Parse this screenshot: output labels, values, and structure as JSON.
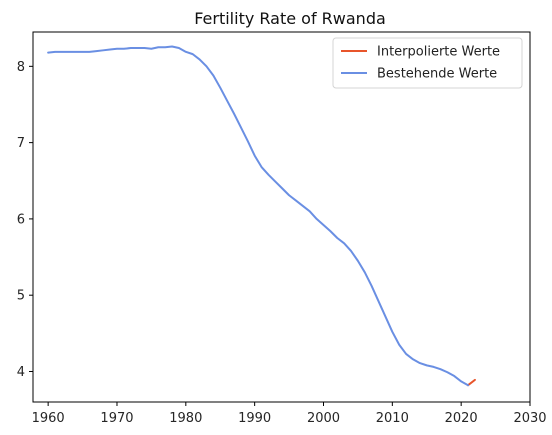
{
  "chart_data": {
    "type": "line",
    "title": "Fertility Rate of Rwanda",
    "xlabel": "",
    "ylabel": "",
    "xlim": [
      1957.8,
      2030
    ],
    "ylim": [
      3.6,
      8.45
    ],
    "xticks": [
      1960,
      1970,
      1980,
      1990,
      2000,
      2010,
      2020,
      2030
    ],
    "yticks": [
      4,
      5,
      6,
      7,
      8
    ],
    "grid": false,
    "legend_position": "top-right",
    "series": [
      {
        "name": "Interpolierte Werte",
        "color": "#e8552b",
        "x": [
          2021,
          2022
        ],
        "y": [
          3.82,
          3.89
        ]
      },
      {
        "name": "Bestehende Werte",
        "color": "#6a8fe3",
        "x": [
          1960,
          1961,
          1962,
          1963,
          1964,
          1965,
          1966,
          1967,
          1968,
          1969,
          1970,
          1971,
          1972,
          1973,
          1974,
          1975,
          1976,
          1977,
          1978,
          1979,
          1980,
          1981,
          1982,
          1983,
          1984,
          1985,
          1986,
          1987,
          1988,
          1989,
          1990,
          1991,
          1992,
          1993,
          1994,
          1995,
          1996,
          1997,
          1998,
          1999,
          2000,
          2001,
          2002,
          2003,
          2004,
          2005,
          2006,
          2007,
          2008,
          2009,
          2010,
          2011,
          2012,
          2013,
          2014,
          2015,
          2016,
          2017,
          2018,
          2019,
          2020,
          2021
        ],
        "y": [
          8.18,
          8.19,
          8.19,
          8.19,
          8.19,
          8.19,
          8.19,
          8.2,
          8.21,
          8.22,
          8.23,
          8.23,
          8.24,
          8.24,
          8.24,
          8.23,
          8.25,
          8.25,
          8.26,
          8.24,
          8.19,
          8.16,
          8.09,
          8.0,
          7.88,
          7.72,
          7.55,
          7.38,
          7.2,
          7.02,
          6.83,
          6.68,
          6.58,
          6.49,
          6.4,
          6.31,
          6.24,
          6.17,
          6.1,
          6.0,
          5.92,
          5.84,
          5.75,
          5.68,
          5.58,
          5.45,
          5.3,
          5.12,
          4.92,
          4.72,
          4.52,
          4.35,
          4.23,
          4.16,
          4.11,
          4.08,
          4.06,
          4.03,
          3.99,
          3.94,
          3.87,
          3.82
        ]
      }
    ]
  }
}
